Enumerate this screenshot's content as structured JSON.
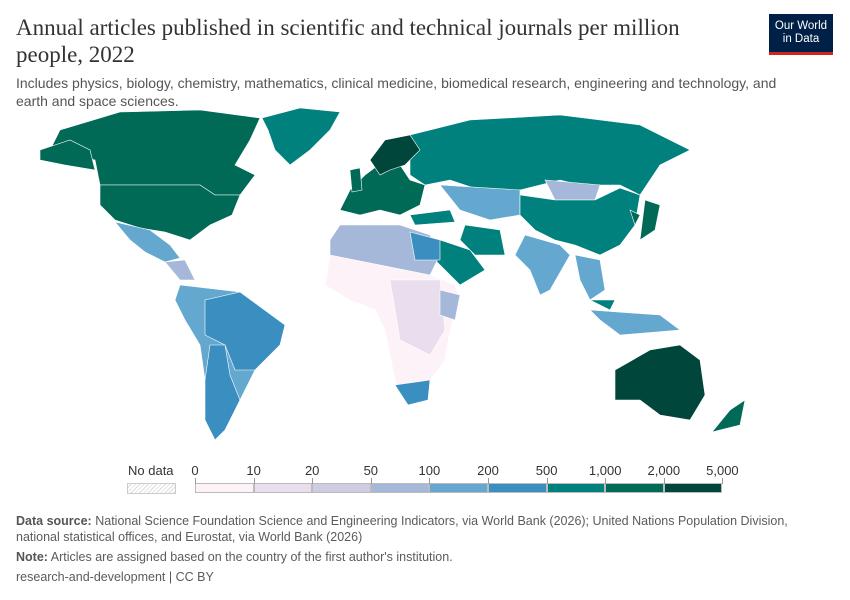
{
  "header": {
    "title": "Annual articles published in scientific and technical journals per million people, 2022",
    "subtitle": "Includes physics, biology, chemistry, mathematics, clinical medicine, biomedical research, engineering and technology, and earth and space sciences.",
    "logo_text": "Our World in Data"
  },
  "chart_data": {
    "type": "map",
    "legend": {
      "no_data_label": "No data",
      "ticks": [
        "0",
        "10",
        "20",
        "50",
        "100",
        "200",
        "500",
        "1,000",
        "2,000",
        "5,000"
      ],
      "colors": [
        "#fdf2f8",
        "#e8deed",
        "#cdcce3",
        "#a5b8d9",
        "#64a7cf",
        "#3b8fc0",
        "#00817d",
        "#006a57",
        "#00463a"
      ]
    },
    "ocean_color": "#ffffff",
    "border_color": "#ffffff"
  },
  "footer": {
    "source_label": "Data source:",
    "source_text": "National Science Foundation Science and Engineering Indicators, via World Bank (2026); United Nations Population Division, national statistical offices, and Eurostat, via World Bank (2026)",
    "note_label": "Note:",
    "note_text": "Articles are assigned based on the country of the first author's institution.",
    "license": "research-and-development | CC BY"
  }
}
